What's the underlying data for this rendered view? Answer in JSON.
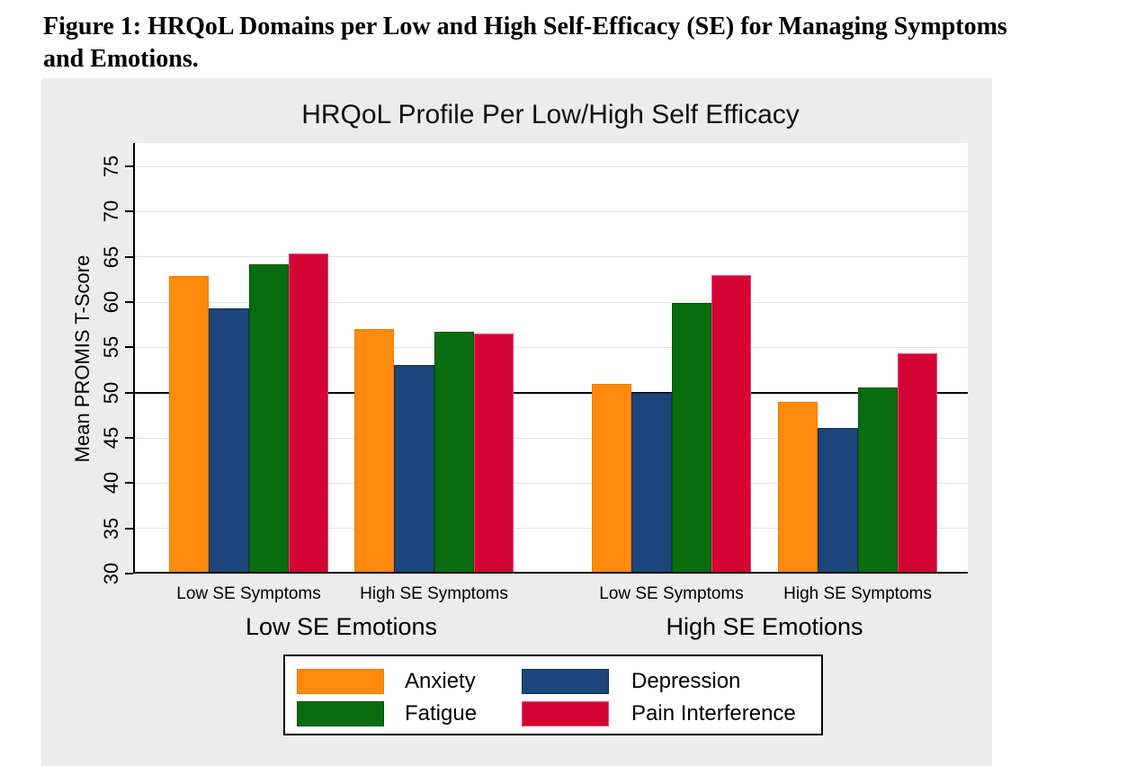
{
  "caption": {
    "line1": "Figure 1: HRQoL Domains per Low and High Self-Efficacy (SE) for Managing Symptoms",
    "line2": "and Emotions."
  },
  "chart_data": {
    "type": "bar",
    "title": "HRQoL Profile Per Low/High Self Efficacy",
    "xlabel": "",
    "ylabel": "Mean PROMIS T-Score",
    "ylim": [
      30,
      77.6
    ],
    "yticks": [
      30,
      35,
      40,
      45,
      50,
      55,
      60,
      65,
      70,
      75
    ],
    "reference_line": 50,
    "grid": true,
    "legend_position": "bottom-center",
    "group_labels": [
      "Low SE Emotions",
      "High SE Emotions"
    ],
    "categories": [
      "Low SE Symptoms",
      "High SE Symptoms",
      "Low SE Symptoms",
      "High SE Symptoms"
    ],
    "series": [
      {
        "name": "Anxiety",
        "color": "#FF8A0D",
        "border": "#F07800",
        "values": [
          62.9,
          57.0,
          51.0,
          49.0
        ]
      },
      {
        "name": "Depression",
        "color": "#1C4679",
        "border": "#132F52",
        "values": [
          59.3,
          53.1,
          50.0,
          46.1
        ]
      },
      {
        "name": "Fatigue",
        "color": "#076D0E",
        "border": "#03520A",
        "values": [
          64.2,
          56.7,
          59.9,
          50.6
        ]
      },
      {
        "name": "Pain Interference",
        "color": "#D40532",
        "border": "#EE4576",
        "values": [
          65.4,
          56.5,
          63.0,
          54.3
        ]
      }
    ],
    "styles": {
      "panel_bg": "#ECECEC",
      "plot_bg": "#FFFFFF",
      "grid_color": "#E2E2E2",
      "axis_color": "#000000",
      "ref_line_color": "#000000"
    }
  }
}
